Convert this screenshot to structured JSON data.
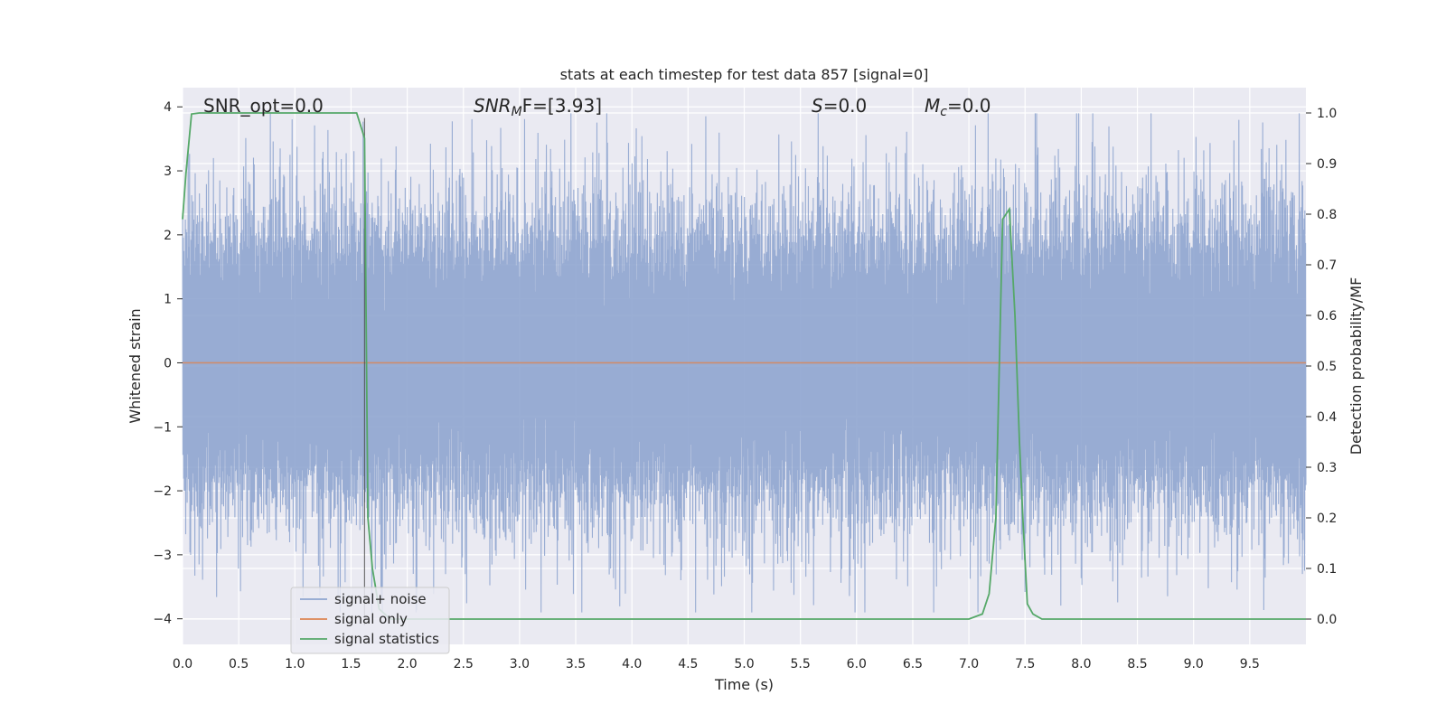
{
  "chart_data": {
    "type": "line",
    "title": "stats at each timestep for test data 857 [signal=0]",
    "xlabel": "Time (s)",
    "ylabel": "Whitened strain",
    "y2label": "Detection probability/MF",
    "xlim": [
      0,
      10
    ],
    "ylim": [
      -4.4,
      4.3
    ],
    "y2lim": [
      -0.05,
      1.05
    ],
    "xticks": [
      "0.0",
      "0.5",
      "1.0",
      "1.5",
      "2.0",
      "2.5",
      "3.0",
      "3.5",
      "4.0",
      "4.5",
      "5.0",
      "5.5",
      "6.0",
      "6.5",
      "7.0",
      "7.5",
      "8.0",
      "8.5",
      "9.0",
      "9.5"
    ],
    "yticks": [
      "4",
      "3",
      "2",
      "1",
      "0",
      "−1",
      "−2",
      "−3",
      "−4"
    ],
    "y2ticks": [
      "1.0",
      "0.9",
      "0.8",
      "0.7",
      "0.6",
      "0.5",
      "0.4",
      "0.3",
      "0.2",
      "0.1",
      "0.0"
    ],
    "grid": true,
    "legend_position": "lower-left",
    "annotations": {
      "snr_opt": "SNR_opt=0.0",
      "snr_mf_italic": "SNR",
      "snr_mf_sub": "M",
      "snr_mf_tail": "F=[3.93]",
      "s_italic": "S",
      "s_tail": "=0.0",
      "mc_italic": "M",
      "mc_sub": "c",
      "mc_tail": "=0.0"
    },
    "colors": {
      "background": "#eaeaf2",
      "grid": "#ffffff",
      "noise": "#8fa5cf",
      "signal": "#dd8452",
      "stats": "#55a868",
      "text": "#262626"
    },
    "series": [
      {
        "name": "signal+ noise",
        "kind": "whitened-noise",
        "description_values": {
          "mean": 0.0,
          "std": 1.0,
          "approx_max": 3.9,
          "approx_min": -4.1
        }
      },
      {
        "name": "signal only",
        "kind": "constant",
        "value": 0.0
      },
      {
        "name": "signal statistics",
        "axis": "y2",
        "x": [
          0.0,
          0.03,
          0.08,
          0.15,
          0.5,
          1.0,
          1.55,
          1.62,
          1.65,
          1.69,
          1.75,
          1.85,
          2.0,
          3.0,
          5.0,
          6.5,
          7.0,
          7.12,
          7.18,
          7.24,
          7.3,
          7.36,
          7.41,
          7.45,
          7.48,
          7.52,
          7.57,
          7.65,
          8.0,
          9.0,
          10.0
        ],
        "values": [
          0.79,
          0.88,
          0.998,
          1.0,
          1.0,
          1.0,
          1.0,
          0.95,
          0.2,
          0.1,
          0.02,
          0.0,
          0.0,
          0.0,
          0.0,
          0.0,
          0.0,
          0.01,
          0.05,
          0.2,
          0.79,
          0.81,
          0.6,
          0.35,
          0.2,
          0.03,
          0.01,
          0.0,
          0.0,
          0.0,
          0.0
        ]
      }
    ],
    "vertical_marker": 1.62
  }
}
